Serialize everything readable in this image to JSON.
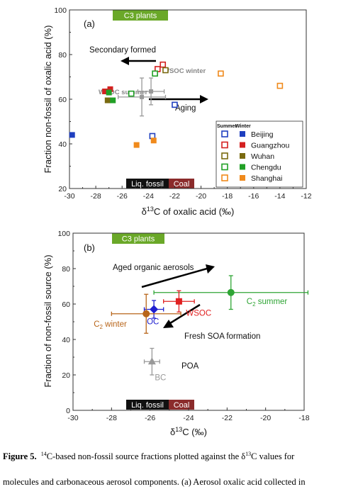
{
  "chart_data": [
    {
      "type": "scatter",
      "panel_label": "(a)",
      "xlabel_prefix": "δ",
      "xlabel_sup": "13",
      "xlabel_suffix": "C of oxalic acid (‰)",
      "ylabel": "Fraction non-fossil of oxalic acid (%)",
      "xlim": [
        -30,
        -12
      ],
      "ylim": [
        20,
        100
      ],
      "xticks": [
        "-30",
        "-28",
        "-26",
        "-24",
        "-22",
        "-20",
        "-18",
        "-16",
        "-14",
        "-12"
      ],
      "yticks": [
        "20",
        "40",
        "60",
        "80",
        "100"
      ],
      "xtick_values": [
        -30,
        -28,
        -26,
        -24,
        -22,
        -20,
        -18,
        -16,
        -14,
        -12
      ],
      "ytick_values": [
        20,
        40,
        60,
        80,
        100
      ],
      "bands": {
        "c3": "C3 plants",
        "liq": "Liq. fossil",
        "coal": "Coal"
      },
      "legend": {
        "summer": "Summer",
        "winter": "Winter",
        "placement": "bottom-right",
        "cities": [
          "Beijing",
          "Guangzhou",
          "Wuhan",
          "Chengdu",
          "Shanghai"
        ]
      },
      "colors": {
        "Beijing": "#1f3fbf",
        "Guangzhou": "#d42020",
        "Wuhan": "#7a6a10",
        "Chengdu": "#21a026",
        "Shanghai": "#f08a1c"
      },
      "annotations": {
        "secondary": "Secondary formed",
        "aging": "Aging",
        "wsoc_winter": "WSOC winter",
        "wsoc_summer": "WSOC summer"
      },
      "series": [
        {
          "name": "Beijing",
          "season": "Summer",
          "points": [
            [
              -22.0,
              57.5
            ],
            [
              -23.7,
              43.5
            ]
          ]
        },
        {
          "name": "Beijing",
          "season": "Winter",
          "points": [
            [
              -29.8,
              44.0
            ]
          ]
        },
        {
          "name": "Guangzhou",
          "season": "Summer",
          "points": [
            [
              -22.9,
              75.5
            ],
            [
              -23.3,
              73.5
            ]
          ]
        },
        {
          "name": "Guangzhou",
          "season": "Winter",
          "points": [
            [
              -27.3,
              63.5
            ],
            [
              -26.9,
              64.5
            ]
          ]
        },
        {
          "name": "Wuhan",
          "season": "Summer",
          "points": [
            [
              -22.7,
              73.0
            ]
          ]
        },
        {
          "name": "Wuhan",
          "season": "Winter",
          "points": [
            [
              -27.1,
              59.5
            ]
          ]
        },
        {
          "name": "Chengdu",
          "season": "Summer",
          "points": [
            [
              -23.5,
              71.5
            ],
            [
              -25.3,
              62.5
            ]
          ]
        },
        {
          "name": "Chengdu",
          "season": "Winter",
          "points": [
            [
              -26.7,
              59.5
            ],
            [
              -27.0,
              63.0
            ]
          ]
        },
        {
          "name": "Shanghai",
          "season": "Summer",
          "points": [
            [
              -18.5,
              71.5
            ],
            [
              -14.0,
              66.0
            ]
          ]
        },
        {
          "name": "Shanghai",
          "season": "Winter",
          "points": [
            [
              -24.9,
              39.5
            ],
            [
              -23.6,
              41.5
            ]
          ]
        }
      ],
      "wsoc_points": [
        {
          "name": "WSOC winter",
          "x": -23.8,
          "y": 63.5,
          "xerr": 1.0,
          "yerr": 6.0
        },
        {
          "name": "WSOC summer",
          "x": -24.5,
          "y": 61.0,
          "xerr": 1.8,
          "yerr": 8.5
        }
      ]
    },
    {
      "type": "scatter",
      "panel_label": "(b)",
      "xlabel_prefix": "δ",
      "xlabel_sup": "13",
      "xlabel_suffix": "C (‰)",
      "ylabel": "Fraction of non-fossil source (%)",
      "xlim": [
        -30,
        -18
      ],
      "ylim": [
        0,
        100
      ],
      "xticks": [
        "-30",
        "-28",
        "-26",
        "-24",
        "-22",
        "-20",
        "-18"
      ],
      "yticks": [
        "0",
        "20",
        "40",
        "60",
        "80",
        "100"
      ],
      "xtick_values": [
        -30,
        -28,
        -26,
        -24,
        -22,
        -20,
        -18
      ],
      "ytick_values": [
        0,
        20,
        40,
        60,
        80,
        100
      ],
      "bands": {
        "c3": "C3 plants",
        "liq": "Liq. fossil",
        "coal": "Coal"
      },
      "annotations": {
        "aged": "Aged organic aerosols",
        "fresh": "Fresh SOA formation",
        "poa": "POA"
      },
      "points": [
        {
          "label_prefix": "C",
          "label_sub": "2",
          "label_suffix": " summer",
          "x": -21.8,
          "y": 66.5,
          "xerr": 4.0,
          "yerr": 9.5,
          "color": "#2fa535",
          "marker": "circle"
        },
        {
          "label_prefix": "",
          "label_sub": "",
          "label_suffix": "WSOC",
          "x": -24.5,
          "y": 61.5,
          "xerr": 0.8,
          "yerr": 6.0,
          "color": "#e02020",
          "marker": "square"
        },
        {
          "label_prefix": "",
          "label_sub": "",
          "label_suffix": "OC",
          "x": -25.8,
          "y": 57.0,
          "xerr": 0.5,
          "yerr": 5.0,
          "color": "#1f1fd0",
          "marker": "diamond"
        },
        {
          "label_prefix": "C",
          "label_sub": "2",
          "label_suffix": " winter",
          "x": -26.2,
          "y": 54.5,
          "xerr": 1.8,
          "yerr": 11.0,
          "color": "#b8651a",
          "marker": "circle"
        },
        {
          "label_prefix": "",
          "label_sub": "",
          "label_suffix": "BC",
          "x": -25.9,
          "y": 27.5,
          "xerr": 0.4,
          "yerr": 7.5,
          "color": "#999999",
          "marker": "triangle"
        }
      ]
    }
  ],
  "caption": {
    "line1_bold": "Figure 5.",
    "line1_sup": "14",
    "line1_a": "C-based non-fossil source fractions plotted against the δ",
    "line1_sup2": "13",
    "line1_b": "C values for",
    "line2": "molecules and carbonaceous aerosol components. (a) Aerosol oxalic acid collected in"
  }
}
